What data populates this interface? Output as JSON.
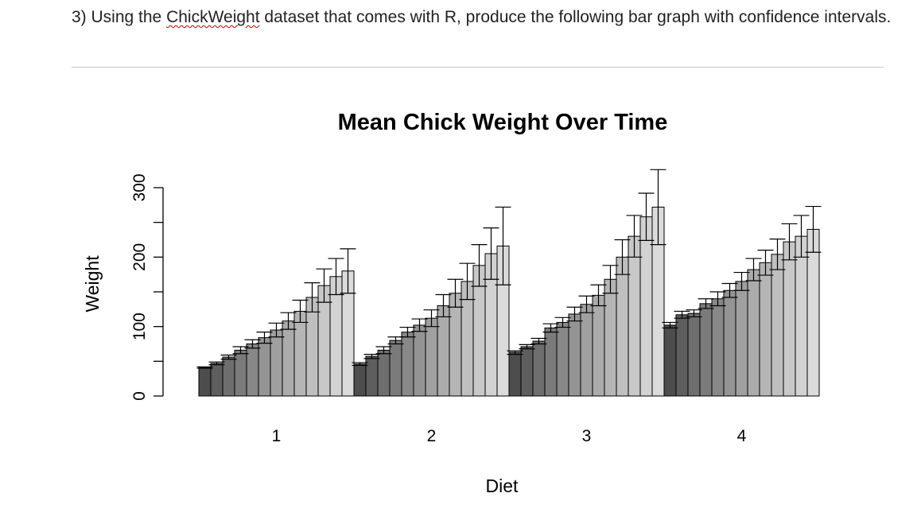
{
  "question": {
    "prefix": "3) Using the ",
    "dataset_name": "ChickWeight",
    "suffix": " dataset that comes with R, produce the following bar graph with confidence intervals."
  },
  "chart_data": {
    "type": "bar",
    "title": "Mean Chick Weight Over Time",
    "xlabel": "Diet",
    "ylabel": "Weight",
    "ylim": [
      0,
      300
    ],
    "yticks": [
      0,
      100,
      200,
      300
    ],
    "categories": [
      "1",
      "2",
      "3",
      "4"
    ],
    "series": [
      {
        "values": [
          41,
          46,
          63,
          102
        ],
        "ci": [
          [
            40,
            42
          ],
          [
            44,
            48
          ],
          [
            60,
            65
          ],
          [
            98,
            106
          ]
        ]
      },
      {
        "values": [
          47,
          57,
          71,
          117
        ],
        "ci": [
          [
            45,
            49
          ],
          [
            54,
            60
          ],
          [
            68,
            74
          ],
          [
            112,
            122
          ]
        ]
      },
      {
        "values": [
          56,
          66,
          79,
          119
        ],
        "ci": [
          [
            53,
            59
          ],
          [
            61,
            71
          ],
          [
            75,
            83
          ],
          [
            114,
            124
          ]
        ]
      },
      {
        "values": [
          66,
          80,
          98,
          133
        ],
        "ci": [
          [
            61,
            71
          ],
          [
            75,
            85
          ],
          [
            92,
            104
          ],
          [
            126,
            140
          ]
        ]
      },
      {
        "values": [
          75,
          92,
          106,
          140
        ],
        "ci": [
          [
            69,
            81
          ],
          [
            85,
            99
          ],
          [
            99,
            113
          ],
          [
            130,
            150
          ]
        ]
      },
      {
        "values": [
          84,
          102,
          118,
          152
        ],
        "ci": [
          [
            76,
            92
          ],
          [
            93,
            111
          ],
          [
            108,
            128
          ],
          [
            142,
            162
          ]
        ]
      },
      {
        "values": [
          95,
          112,
          132,
          165
        ],
        "ci": [
          [
            85,
            105
          ],
          [
            100,
            124
          ],
          [
            120,
            144
          ],
          [
            152,
            178
          ]
        ]
      },
      {
        "values": [
          108,
          130,
          145,
          182
        ],
        "ci": [
          [
            96,
            120
          ],
          [
            114,
            146
          ],
          [
            130,
            160
          ],
          [
            166,
            198
          ]
        ]
      },
      {
        "values": [
          122,
          148,
          168,
          192
        ],
        "ci": [
          [
            106,
            138
          ],
          [
            128,
            168
          ],
          [
            148,
            188
          ],
          [
            174,
            210
          ]
        ]
      },
      {
        "values": [
          142,
          165,
          200,
          204
        ],
        "ci": [
          [
            121,
            163
          ],
          [
            139,
            191
          ],
          [
            175,
            225
          ],
          [
            182,
            226
          ]
        ]
      },
      {
        "values": [
          159,
          188,
          230,
          222
        ],
        "ci": [
          [
            135,
            183
          ],
          [
            158,
            218
          ],
          [
            200,
            260
          ],
          [
            196,
            248
          ]
        ]
      },
      {
        "values": [
          172,
          205,
          258,
          230
        ],
        "ci": [
          [
            146,
            198
          ],
          [
            168,
            242
          ],
          [
            224,
            292
          ],
          [
            200,
            260
          ]
        ]
      },
      {
        "values": [
          180,
          216,
          272,
          240
        ],
        "ci": [
          [
            148,
            212
          ],
          [
            160,
            272
          ],
          [
            218,
            326
          ],
          [
            207,
            273
          ]
        ]
      }
    ],
    "bar_colors": [
      "#4d4d4d",
      "#5e5e5e",
      "#6e6e6e",
      "#7b7b7b",
      "#888888",
      "#949494",
      "#a0a0a0",
      "#ababab",
      "#b5b5b5",
      "#bfbfbf",
      "#c8c8c8",
      "#d2d2d2",
      "#dbdbdb"
    ],
    "legend": "none",
    "grid": false
  }
}
